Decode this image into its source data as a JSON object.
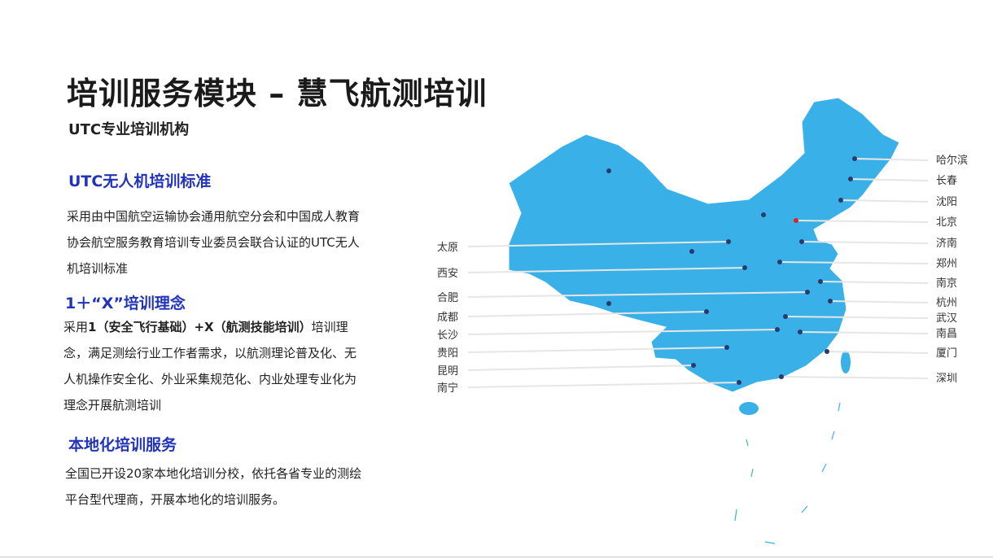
{
  "title": "培训服务模块 – 慧飞航测培训",
  "subtitle": "UTC专业培训机构",
  "sections": [
    {
      "heading": "UTC无人机培训标准",
      "body": "采用由中国航空运输协会通用航空分会和中国成人教育协会航空服务教育培训专业委员会联合认证的UTC无人机培训标准"
    },
    {
      "heading": "1＋“X”培训理念",
      "body_prefix": "采用",
      "body_bold": "1（安全飞行基础）+X（航测技能培训）",
      "body_suffix": "培训理念，满足测绘行业工作者需求，以航测理论普及化、无人机操作安全化、外业采集规范化、内业处理专业化为理念开展航测培训"
    },
    {
      "heading": "本地化培训服务",
      "body": "全国已开设20家本地化培训分校，依托各省专业的测绘平台型代理商，开展本地化的培训服务。"
    }
  ],
  "map": {
    "color": "#3ab0e8",
    "left_cities": [
      "太原",
      "西安",
      "合肥",
      "成都",
      "长沙",
      "贵阳",
      "昆明",
      "南宁"
    ],
    "right_cities": [
      "哈尔滨",
      "长春",
      "沈阳",
      "北京",
      "济南",
      "郑州",
      "南京",
      "杭州",
      "武汉",
      "南昌",
      "厦门",
      "深圳"
    ]
  }
}
